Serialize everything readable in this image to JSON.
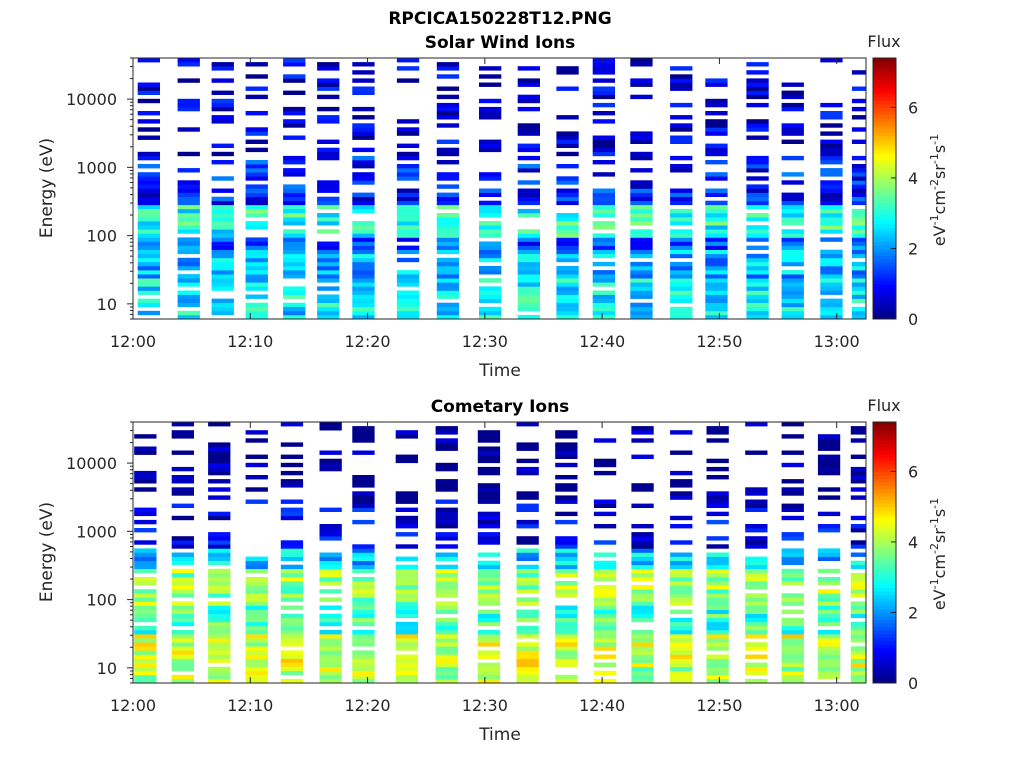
{
  "figure_title": "RPCICA150228T12.PNG",
  "chart_data": [
    {
      "type": "heatmap",
      "title": "Solar Wind Ions",
      "xlabel": "Time",
      "ylabel": "Energy (eV)",
      "x_ticks": [
        "12:00",
        "12:10",
        "12:20",
        "12:30",
        "12:40",
        "12:50",
        "13:00"
      ],
      "x_range_minutes": [
        0,
        62.5
      ],
      "y_scale": "log",
      "y_ticks": [
        10,
        100,
        1000,
        10000
      ],
      "y_tick_labels": [
        "10",
        "100",
        "1000",
        "10000"
      ],
      "y_range": [
        6,
        40000
      ],
      "colorbar": {
        "title": "Flux",
        "label": "eV-1cm-2sr-1s-1",
        "label_parts": {
          "base1": "eV",
          "exp1": "-1",
          "base2": "cm",
          "exp2": "-2",
          "base3": "sr",
          "exp3": "-1",
          "base4": "s",
          "exp4": "-1"
        },
        "ticks": [
          0,
          2,
          4,
          6
        ],
        "tick_labels": [
          "0",
          "2",
          "4",
          "6"
        ],
        "range": [
          0,
          7.4
        ],
        "colormap": "jet"
      },
      "sweep_start_minutes": [
        0.4,
        3.8,
        6.7,
        9.6,
        12.8,
        15.7,
        18.7,
        22.5,
        25.9,
        29.5,
        32.8,
        36.1,
        39.2,
        42.4,
        45.8,
        48.8,
        52.3,
        55.3,
        58.6,
        61.3
      ],
      "levels_by_energy_band": [
        {
          "e_low": 6,
          "e_high": 10,
          "flux": 2.6
        },
        {
          "e_low": 10,
          "e_high": 25,
          "flux": 2.7
        },
        {
          "e_low": 25,
          "e_high": 60,
          "flux": 2.2
        },
        {
          "e_low": 60,
          "e_high": 90,
          "flux": 1.5
        },
        {
          "e_low": 90,
          "e_high": 300,
          "flux": 3.0
        },
        {
          "e_low": 300,
          "e_high": 1500,
          "flux": 1.1
        },
        {
          "e_low": 1500,
          "e_high": 40000,
          "flux": 0.6
        }
      ]
    },
    {
      "type": "heatmap",
      "title": "Cometary Ions",
      "xlabel": "Time",
      "ylabel": "Energy (eV)",
      "x_ticks": [
        "12:00",
        "12:10",
        "12:20",
        "12:30",
        "12:40",
        "12:50",
        "13:00"
      ],
      "x_range_minutes": [
        0,
        62.5
      ],
      "y_scale": "log",
      "y_ticks": [
        10,
        100,
        1000,
        10000
      ],
      "y_tick_labels": [
        "10",
        "100",
        "1000",
        "10000"
      ],
      "y_range": [
        6,
        40000
      ],
      "colorbar": {
        "title": "Flux",
        "label": "eV-1cm-2sr-1s-1",
        "label_parts": {
          "base1": "eV",
          "exp1": "-1",
          "base2": "cm",
          "exp2": "-2",
          "base3": "sr",
          "exp3": "-1",
          "base4": "s",
          "exp4": "-1"
        },
        "ticks": [
          0,
          2,
          4,
          6
        ],
        "tick_labels": [
          "0",
          "2",
          "4",
          "6"
        ],
        "range": [
          0,
          7.4
        ],
        "colormap": "jet"
      },
      "sweep_start_minutes": [
        0.1,
        3.3,
        6.4,
        9.6,
        12.6,
        15.9,
        18.7,
        22.4,
        25.8,
        29.4,
        32.7,
        36.0,
        39.3,
        42.5,
        45.8,
        48.9,
        52.2,
        55.3,
        58.4,
        61.2
      ],
      "levels_by_energy_band": [
        {
          "e_low": 6,
          "e_high": 10,
          "flux": 4.0
        },
        {
          "e_low": 10,
          "e_high": 30,
          "flux": 4.3
        },
        {
          "e_low": 30,
          "e_high": 80,
          "flux": 3.2
        },
        {
          "e_low": 80,
          "e_high": 300,
          "flux": 3.9
        },
        {
          "e_low": 300,
          "e_high": 600,
          "flux": 2.4
        },
        {
          "e_low": 600,
          "e_high": 3000,
          "flux": 0.7
        }
      ]
    }
  ]
}
